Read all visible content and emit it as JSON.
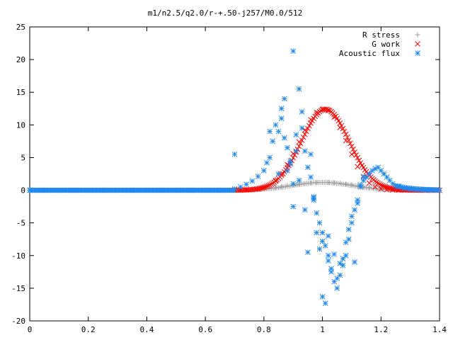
{
  "chart_data": {
    "type": "scatter",
    "title": "m1/n2.5/q2.0/r-+.50-j257/M0.0/512",
    "xlabel": "",
    "ylabel": "",
    "xlim": [
      0,
      1.4
    ],
    "ylim": [
      -20,
      25
    ],
    "x_ticks": [
      "0",
      "0.2",
      "0.4",
      "0.6",
      "0.8",
      "1",
      "1.2",
      "1.4"
    ],
    "y_ticks": [
      "25",
      "20",
      "15",
      "10",
      "5",
      "0",
      "-5",
      "-10",
      "-15",
      "-20"
    ],
    "grid": false,
    "legend_position": "top-right",
    "series": [
      {
        "name": "R stress",
        "marker": "plus",
        "color": "#a0a0a0",
        "x": [
          0.7,
          0.72,
          0.74,
          0.76,
          0.78,
          0.8,
          0.82,
          0.84,
          0.86,
          0.88,
          0.9,
          0.92,
          0.94,
          0.96,
          0.98,
          1.0,
          1.02,
          1.04,
          1.06,
          1.08,
          1.1,
          1.12,
          1.14,
          1.16,
          1.18,
          1.2,
          1.22,
          1.24,
          1.26,
          1.28,
          1.3,
          1.32,
          1.34,
          1.36,
          1.38,
          1.4
        ],
        "y": [
          0.02,
          0.04,
          0.07,
          0.12,
          0.18,
          0.26,
          0.36,
          0.48,
          0.6,
          0.72,
          0.84,
          0.95,
          1.04,
          1.12,
          1.17,
          1.2,
          1.19,
          1.15,
          1.07,
          0.96,
          0.84,
          0.7,
          0.56,
          0.43,
          0.32,
          0.22,
          0.15,
          0.1,
          0.06,
          0.04,
          0.02,
          0.01,
          0.01,
          0.0,
          0.0,
          0.0
        ]
      },
      {
        "name": "G work",
        "marker": "cross",
        "color": "#ff0000",
        "x": [
          0.7,
          0.72,
          0.74,
          0.76,
          0.78,
          0.8,
          0.82,
          0.84,
          0.86,
          0.88,
          0.9,
          0.92,
          0.94,
          0.96,
          0.98,
          1.0,
          1.02,
          1.04,
          1.06,
          1.08,
          1.1,
          1.12,
          1.14,
          1.16,
          1.18,
          1.2,
          1.22,
          1.24,
          1.26,
          1.28,
          1.3,
          1.32,
          1.34,
          1.36,
          1.38,
          1.4
        ],
        "y": [
          0.0,
          0.02,
          0.05,
          0.1,
          0.2,
          0.4,
          0.8,
          1.5,
          2.5,
          3.9,
          5.6,
          7.4,
          9.2,
          10.8,
          11.9,
          12.4,
          12.2,
          11.2,
          9.6,
          7.6,
          5.5,
          3.6,
          2.1,
          1.1,
          0.5,
          0.2,
          0.08,
          0.03,
          0.01,
          0.0,
          0.0,
          0.0,
          0.0,
          0.0,
          0.0,
          0.0
        ]
      },
      {
        "name": "Acoustic flux",
        "marker": "star",
        "color": "#2288ee",
        "x": [
          0.0,
          0.05,
          0.1,
          0.15,
          0.2,
          0.25,
          0.3,
          0.35,
          0.4,
          0.45,
          0.5,
          0.55,
          0.6,
          0.65,
          0.7,
          0.7,
          0.72,
          0.74,
          0.76,
          0.78,
          0.8,
          0.81,
          0.82,
          0.83,
          0.84,
          0.85,
          0.86,
          0.87,
          0.88,
          0.88,
          0.89,
          0.9,
          0.9,
          0.91,
          0.92,
          0.93,
          0.94,
          0.95,
          0.96,
          0.97,
          0.98,
          0.99,
          1.0,
          1.01,
          1.02,
          1.03,
          1.04,
          1.05,
          1.06,
          1.07,
          1.08,
          1.09,
          1.1,
          1.11,
          1.12,
          1.13,
          1.14,
          1.15,
          1.16,
          1.17,
          1.18,
          1.19,
          1.2,
          1.21,
          1.22,
          1.23,
          1.24,
          1.26,
          1.28,
          1.3,
          1.32,
          1.34,
          1.36,
          1.38,
          1.4,
          0.82,
          0.86,
          0.89,
          0.91,
          0.93,
          0.96,
          0.99,
          1.02,
          1.05,
          1.08,
          1.11,
          1.14,
          0.85,
          0.87,
          0.92,
          0.95,
          0.97,
          0.98,
          1.0,
          1.01,
          1.03,
          1.04,
          1.06,
          1.07,
          1.09,
          1.1,
          1.12,
          1.13,
          0.9,
          0.94,
          0.97,
          1.0,
          1.02
        ],
        "y": [
          0,
          0,
          0,
          0,
          0,
          0,
          0,
          0,
          0,
          0,
          0,
          0,
          0,
          0,
          5.5,
          0.2,
          0.5,
          0.9,
          1.4,
          2.1,
          3.0,
          4.2,
          5.0,
          7.5,
          10.0,
          9.0,
          11.0,
          8.0,
          6.5,
          3.0,
          4.5,
          1.0,
          21.3,
          8.5,
          15.5,
          12.0,
          6.0,
          3.5,
          2.0,
          -1.0,
          -3.5,
          -5.0,
          -6.5,
          -8.5,
          -10.0,
          -12.0,
          -14.0,
          -15.0,
          -13.0,
          -11.5,
          -10.0,
          -7.5,
          -5.0,
          -3.0,
          -1.5,
          0.5,
          1.5,
          2.0,
          2.5,
          3.0,
          3.3,
          3.5,
          3.0,
          2.5,
          2.0,
          1.5,
          1.0,
          0.6,
          0.3,
          0.15,
          0.07,
          0.03,
          0.01,
          0.0,
          0.0,
          9.0,
          12.5,
          4.0,
          6.0,
          9.5,
          5.5,
          -9.0,
          -7.0,
          -13.5,
          -8.0,
          -11.0,
          2.0,
          2.5,
          14.0,
          1.5,
          -9.5,
          -1.5,
          -6.5,
          -16.3,
          -17.3,
          -12.5,
          -9.8,
          -11.2,
          -10.5,
          -6.0,
          -4.0,
          -2.0,
          0.8,
          -2.5,
          -3.0,
          -1.2,
          -7.8,
          -10.8
        ]
      }
    ]
  }
}
